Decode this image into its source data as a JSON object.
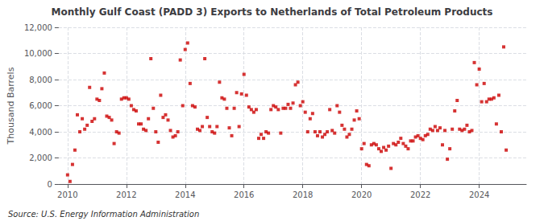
{
  "chart_data": {
    "type": "scatter",
    "title": "Monthly Gulf Coast (PADD 3) Exports to Netherlands of Total Petroleum Products",
    "ylabel": "Thousand Barrels",
    "annotations": [
      "Source: U.S. Energy Information Administration"
    ],
    "color": "#cc0000",
    "marker": "square",
    "grid": true,
    "xlim": [
      2009.7,
      2025.6
    ],
    "xticks": [
      2010,
      2012,
      2014,
      2016,
      2018,
      2020,
      2022,
      2024
    ],
    "ylim": [
      0,
      12000
    ],
    "yticks": [
      0,
      {
        "value": 2000,
        "label": "2,000"
      },
      {
        "value": 4000,
        "label": "4,000"
      },
      {
        "value": 6000,
        "label": "6,000"
      },
      {
        "value": 8000,
        "label": "8,000"
      },
      {
        "value": 10000,
        "label": "10,000"
      },
      {
        "value": 12000,
        "label": "12,000"
      }
    ],
    "x": [
      2010.0,
      2010.083,
      2010.167,
      2010.25,
      2010.333,
      2010.417,
      2010.5,
      2010.583,
      2010.667,
      2010.75,
      2010.833,
      2010.917,
      2011.0,
      2011.083,
      2011.167,
      2011.25,
      2011.333,
      2011.417,
      2011.5,
      2011.583,
      2011.667,
      2011.75,
      2011.833,
      2011.917,
      2012.0,
      2012.083,
      2012.167,
      2012.25,
      2012.333,
      2012.417,
      2012.5,
      2012.583,
      2012.667,
      2012.75,
      2012.833,
      2012.917,
      2013.0,
      2013.083,
      2013.167,
      2013.25,
      2013.333,
      2013.417,
      2013.5,
      2013.583,
      2013.667,
      2013.75,
      2013.833,
      2013.917,
      2014.0,
      2014.083,
      2014.167,
      2014.25,
      2014.333,
      2014.417,
      2014.5,
      2014.583,
      2014.667,
      2014.75,
      2014.833,
      2014.917,
      2015.0,
      2015.083,
      2015.167,
      2015.25,
      2015.333,
      2015.417,
      2015.5,
      2015.583,
      2015.667,
      2015.75,
      2015.833,
      2015.917,
      2016.0,
      2016.083,
      2016.167,
      2016.25,
      2016.333,
      2016.417,
      2016.5,
      2016.583,
      2016.667,
      2016.75,
      2016.833,
      2016.917,
      2017.0,
      2017.083,
      2017.167,
      2017.25,
      2017.333,
      2017.417,
      2017.5,
      2017.583,
      2017.667,
      2017.75,
      2017.833,
      2017.917,
      2018.0,
      2018.083,
      2018.167,
      2018.25,
      2018.333,
      2018.417,
      2018.5,
      2018.583,
      2018.667,
      2018.75,
      2018.833,
      2018.917,
      2019.0,
      2019.083,
      2019.167,
      2019.25,
      2019.333,
      2019.417,
      2019.5,
      2019.583,
      2019.667,
      2019.75,
      2019.833,
      2019.917,
      2020.0,
      2020.083,
      2020.167,
      2020.25,
      2020.333,
      2020.417,
      2020.5,
      2020.583,
      2020.667,
      2020.75,
      2020.833,
      2020.917,
      2021.0,
      2021.083,
      2021.167,
      2021.25,
      2021.333,
      2021.417,
      2021.5,
      2021.583,
      2021.667,
      2021.75,
      2021.833,
      2021.917,
      2022.0,
      2022.083,
      2022.167,
      2022.25,
      2022.333,
      2022.417,
      2022.5,
      2022.583,
      2022.667,
      2022.75,
      2022.833,
      2022.917,
      2023.0,
      2023.083,
      2023.167,
      2023.25,
      2023.333,
      2023.417,
      2023.5,
      2023.583,
      2023.667,
      2023.75,
      2023.833,
      2023.917,
      2024.0,
      2024.083,
      2024.167,
      2024.25,
      2024.333,
      2024.417,
      2024.5,
      2024.583,
      2024.667,
      2024.75,
      2024.833,
      2024.917
    ],
    "values": [
      700,
      200,
      1500,
      2600,
      5300,
      4000,
      5000,
      4200,
      4500,
      7400,
      4800,
      5000,
      6500,
      6400,
      7300,
      8500,
      5200,
      5100,
      4900,
      3100,
      4000,
      3900,
      6500,
      6600,
      6600,
      6500,
      6000,
      5700,
      5600,
      4600,
      4600,
      4200,
      4100,
      5000,
      9600,
      5800,
      4000,
      3200,
      6800,
      5100,
      5300,
      4900,
      4100,
      3600,
      3700,
      4000,
      9500,
      6000,
      10300,
      10800,
      7700,
      6000,
      5900,
      4200,
      4100,
      4400,
      9600,
      5100,
      4400,
      4000,
      3900,
      4400,
      7800,
      6600,
      6500,
      5800,
      4300,
      3700,
      5800,
      7000,
      4400,
      6900,
      8400,
      6800,
      5900,
      5700,
      5500,
      5700,
      3500,
      3800,
      3500,
      4000,
      3900,
      5700,
      6000,
      5900,
      5700,
      3900,
      5800,
      5800,
      6100,
      5800,
      6200,
      7600,
      7800,
      6000,
      6300,
      5500,
      4000,
      5000,
      5400,
      4000,
      3700,
      4000,
      3600,
      3800,
      4000,
      5700,
      4100,
      3900,
      6000,
      5500,
      4500,
      4200,
      3600,
      3800,
      4200,
      4900,
      5600,
      5000,
      2700,
      3100,
      1500,
      1400,
      3000,
      3100,
      3000,
      2700,
      2500,
      2800,
      2600,
      2900,
      1200,
      3100,
      3000,
      3200,
      3500,
      3100,
      2900,
      2700,
      3300,
      3300,
      3600,
      3700,
      3500,
      3400,
      3700,
      3800,
      4200,
      4100,
      4400,
      4100,
      4300,
      3000,
      4100,
      1900,
      2700,
      4200,
      5600,
      6400,
      4200,
      4100,
      4200,
      4500,
      4000,
      4100,
      9300,
      7600,
      8800,
      6300,
      7700,
      6300,
      6500,
      6500,
      6600,
      4600,
      6800,
      4000,
      10500,
      2600
    ]
  }
}
